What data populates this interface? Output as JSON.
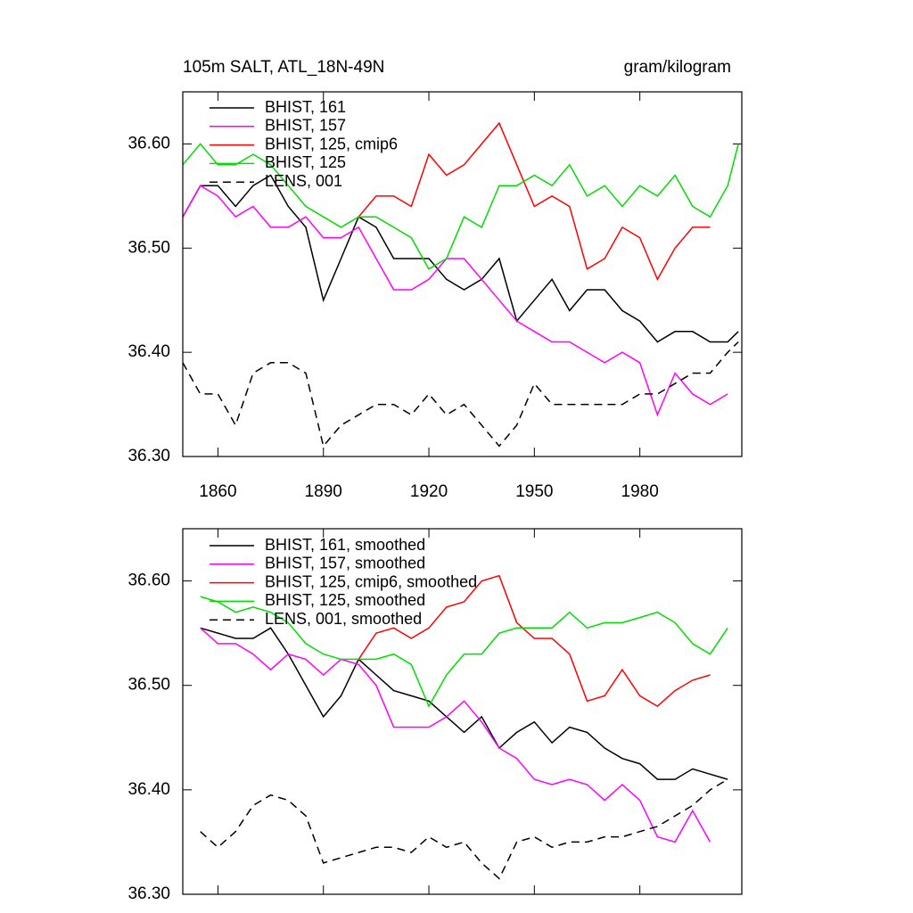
{
  "chart_data": [
    {
      "type": "line",
      "title": "105m SALT, ATL_18N-49N",
      "units": "gram/kilogram",
      "x": [
        1850,
        1855,
        1860,
        1865,
        1870,
        1875,
        1880,
        1885,
        1890,
        1895,
        1900,
        1905,
        1910,
        1915,
        1920,
        1925,
        1930,
        1935,
        1940,
        1945,
        1950,
        1955,
        1960,
        1965,
        1970,
        1975,
        1980,
        1985,
        1990,
        1995,
        2000,
        2005,
        2008
      ],
      "xlim": [
        1850,
        2009
      ],
      "xticks": [
        1860,
        1890,
        1920,
        1950,
        1980
      ],
      "ylim": [
        36.3,
        36.65
      ],
      "yticks": [
        {
          "value": 36.3,
          "label": "36.30"
        },
        {
          "value": 36.4,
          "label": "36.40"
        },
        {
          "value": 36.5,
          "label": "36.50"
        },
        {
          "value": 36.6,
          "label": "36.60"
        }
      ],
      "series": [
        {
          "name": "BHIST, 161",
          "color": "#000000",
          "dashed": false,
          "values": [
            36.53,
            36.56,
            36.56,
            36.54,
            36.56,
            36.57,
            36.54,
            36.52,
            36.45,
            36.49,
            36.53,
            36.52,
            36.49,
            36.49,
            36.49,
            36.47,
            36.46,
            36.47,
            36.49,
            36.43,
            36.45,
            36.47,
            36.44,
            36.46,
            36.46,
            36.44,
            36.43,
            36.41,
            36.42,
            36.42,
            36.41,
            36.41,
            36.42
          ]
        },
        {
          "name": "BHIST, 157",
          "color": "#ff00ff",
          "dashed": false,
          "values": [
            36.53,
            36.56,
            36.55,
            36.53,
            36.54,
            36.52,
            36.52,
            36.53,
            36.51,
            36.51,
            36.52,
            36.49,
            36.46,
            36.46,
            36.47,
            36.49,
            36.49,
            36.47,
            36.45,
            36.43,
            36.42,
            36.41,
            36.41,
            36.4,
            36.39,
            36.4,
            36.39,
            36.34,
            36.38,
            36.36,
            36.35,
            36.36,
            null
          ]
        },
        {
          "name": "BHIST, 125, cmip6",
          "color": "#ff0000",
          "dashed": false,
          "values": [
            null,
            null,
            null,
            null,
            null,
            null,
            null,
            null,
            null,
            null,
            36.53,
            36.55,
            36.55,
            36.54,
            36.59,
            36.57,
            36.58,
            36.6,
            36.62,
            36.58,
            36.54,
            36.55,
            36.54,
            36.48,
            36.49,
            36.52,
            36.51,
            36.47,
            36.5,
            36.52,
            36.52,
            null,
            null
          ]
        },
        {
          "name": "BHIST, 125",
          "color": "#00dd00",
          "dashed": false,
          "values": [
            36.58,
            36.6,
            36.58,
            36.58,
            36.59,
            36.58,
            36.56,
            36.54,
            36.53,
            36.52,
            36.53,
            36.53,
            36.52,
            36.51,
            36.48,
            36.49,
            36.53,
            36.52,
            36.56,
            36.56,
            36.57,
            36.56,
            36.58,
            36.55,
            36.56,
            36.54,
            36.56,
            36.55,
            36.57,
            36.54,
            36.53,
            36.56,
            36.6
          ]
        },
        {
          "name": "LENS, 001",
          "color": "#000000",
          "dashed": true,
          "values": [
            36.39,
            36.36,
            36.36,
            36.33,
            36.38,
            36.39,
            36.39,
            36.38,
            36.31,
            36.33,
            36.34,
            36.35,
            36.35,
            36.34,
            36.36,
            36.34,
            36.35,
            36.33,
            36.31,
            36.33,
            36.37,
            36.35,
            36.35,
            36.35,
            36.35,
            36.35,
            36.36,
            36.36,
            36.37,
            36.38,
            36.38,
            36.4,
            36.41
          ]
        }
      ]
    },
    {
      "type": "line",
      "x": [
        1855,
        1860,
        1865,
        1870,
        1875,
        1880,
        1885,
        1890,
        1895,
        1900,
        1905,
        1910,
        1915,
        1920,
        1925,
        1930,
        1935,
        1940,
        1945,
        1950,
        1955,
        1960,
        1965,
        1970,
        1975,
        1980,
        1985,
        1990,
        1995,
        2000,
        2005
      ],
      "xlim": [
        1850,
        2009
      ],
      "xticks": [
        1860,
        1890,
        1920,
        1950,
        1980
      ],
      "ylim": [
        36.3,
        36.65
      ],
      "yticks": [
        {
          "value": 36.3,
          "label": "36.30"
        },
        {
          "value": 36.4,
          "label": "36.40"
        },
        {
          "value": 36.5,
          "label": "36.50"
        },
        {
          "value": 36.6,
          "label": "36.60"
        }
      ],
      "series": [
        {
          "name": "BHIST, 161, smoothed",
          "color": "#000000",
          "dashed": false,
          "values": [
            36.555,
            36.55,
            36.545,
            36.545,
            36.555,
            36.53,
            36.5,
            36.47,
            36.49,
            36.525,
            36.51,
            36.495,
            36.49,
            36.485,
            36.47,
            36.455,
            36.47,
            36.44,
            36.455,
            36.465,
            36.445,
            36.46,
            36.455,
            36.44,
            36.43,
            36.425,
            36.41,
            36.41,
            36.42,
            36.415,
            36.41
          ]
        },
        {
          "name": "BHIST, 157, smoothed",
          "color": "#ff00ff",
          "dashed": false,
          "values": [
            36.555,
            36.54,
            36.54,
            36.53,
            36.515,
            36.53,
            36.525,
            36.51,
            36.525,
            36.52,
            36.5,
            36.46,
            36.46,
            36.46,
            36.47,
            36.485,
            36.465,
            36.44,
            36.43,
            36.41,
            36.405,
            36.41,
            36.405,
            36.39,
            36.405,
            36.39,
            36.355,
            36.35,
            36.38,
            36.35,
            null
          ]
        },
        {
          "name": "BHIST, 125, cmip6, smoothed",
          "color": "#ff0000",
          "dashed": false,
          "values": [
            null,
            null,
            null,
            null,
            null,
            null,
            null,
            null,
            null,
            36.525,
            36.55,
            36.555,
            36.545,
            36.555,
            36.575,
            36.58,
            36.6,
            36.605,
            36.56,
            36.545,
            36.545,
            36.53,
            36.485,
            36.49,
            36.515,
            36.49,
            36.48,
            36.495,
            36.505,
            36.51,
            null
          ]
        },
        {
          "name": "BHIST, 125, smoothed",
          "color": "#00dd00",
          "dashed": false,
          "values": [
            36.585,
            36.58,
            36.57,
            36.575,
            36.57,
            36.56,
            36.54,
            36.53,
            36.525,
            36.525,
            36.525,
            36.53,
            36.52,
            36.48,
            36.51,
            36.53,
            36.53,
            36.55,
            36.555,
            36.555,
            36.555,
            36.57,
            36.555,
            36.56,
            36.56,
            36.565,
            36.57,
            36.56,
            36.54,
            36.53,
            36.555
          ]
        },
        {
          "name": "LENS, 001, smoothed",
          "color": "#000000",
          "dashed": true,
          "values": [
            36.36,
            36.345,
            36.36,
            36.385,
            36.395,
            36.39,
            36.375,
            36.33,
            36.335,
            36.34,
            36.345,
            36.345,
            36.34,
            36.355,
            36.345,
            36.35,
            36.33,
            36.315,
            36.35,
            36.355,
            36.345,
            36.35,
            36.35,
            36.355,
            36.355,
            36.36,
            36.365,
            36.375,
            36.385,
            36.4,
            36.41
          ]
        }
      ]
    }
  ]
}
